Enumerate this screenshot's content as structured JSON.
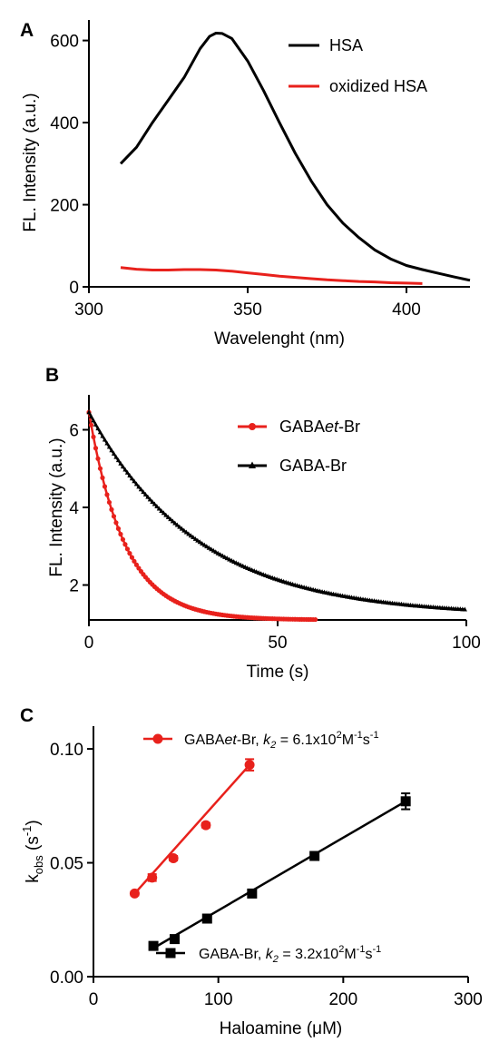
{
  "chart_data": [
    {
      "panel": "A",
      "type": "line",
      "xlabel": "Wavelenght (nm)",
      "ylabel": "FL. Intensity  (a.u.)",
      "xlim": [
        300,
        420
      ],
      "ylim": [
        0,
        650
      ],
      "xticks": [
        300,
        350,
        400
      ],
      "yticks": [
        0,
        200,
        400,
        600
      ],
      "legend_position": "top-right",
      "series": [
        {
          "name": "HSA",
          "color": "#000000",
          "x": [
            310,
            315,
            320,
            325,
            330,
            335,
            338,
            340,
            342,
            345,
            350,
            355,
            360,
            365,
            370,
            375,
            380,
            385,
            390,
            395,
            400,
            405,
            410,
            415,
            420
          ],
          "y": [
            300,
            340,
            400,
            455,
            510,
            580,
            610,
            618,
            617,
            605,
            550,
            478,
            400,
            325,
            258,
            200,
            155,
            120,
            90,
            68,
            52,
            42,
            33,
            24,
            16
          ]
        },
        {
          "name": "oxidized HSA",
          "color": "#e8211c",
          "x": [
            310,
            315,
            320,
            325,
            330,
            335,
            340,
            345,
            350,
            355,
            360,
            365,
            370,
            375,
            380,
            385,
            390,
            395,
            400,
            405
          ],
          "y": [
            47,
            43,
            41,
            41,
            42,
            42,
            41,
            38,
            34,
            30,
            26,
            23,
            20,
            17,
            15,
            13,
            12,
            10,
            9,
            8
          ]
        }
      ]
    },
    {
      "panel": "B",
      "type": "line",
      "xlabel": "Time (s)",
      "ylabel": "FL. Intensity  (a.u.)",
      "xlim": [
        0,
        100
      ],
      "ylim": [
        1.1,
        6.9
      ],
      "xticks": [
        0,
        50,
        100
      ],
      "yticks": [
        2,
        4,
        6
      ],
      "legend_position": "top-right",
      "series": [
        {
          "name": "GABAet-Br",
          "name_parts": [
            "GABA",
            "et",
            "-Br"
          ],
          "color": "#e8211c",
          "marker": "circle",
          "model": "exponential",
          "y0": 6.45,
          "yinf": 1.1,
          "tau": 9.5,
          "x_range": [
            0,
            60
          ]
        },
        {
          "name": "GABA-Br",
          "color": "#000000",
          "marker": "triangle",
          "model": "exponential",
          "y0": 6.45,
          "yinf": 1.2,
          "tau": 29,
          "x_range": [
            0,
            100
          ]
        }
      ]
    },
    {
      "panel": "C",
      "type": "scatter",
      "xlabel": "Haloamine (μM)",
      "ylabel": "kobs (s-1)",
      "xlim": [
        0,
        300
      ],
      "ylim": [
        0,
        0.11
      ],
      "xticks": [
        0,
        100,
        200,
        300
      ],
      "yticks": [
        0.0,
        0.05,
        0.1
      ],
      "ytick_labels": [
        "0.00",
        "0.05",
        "0.10"
      ],
      "series": [
        {
          "name": "GABAet-Br",
          "legend_main": "GABA",
          "legend_italic": "et",
          "legend_rest": "-Br, ",
          "legend_k": "k",
          "legend_k_sub": "2",
          "legend_eq": " = 6.1x10",
          "legend_sup1": "2",
          "legend_unit": "M",
          "legend_sup2": "-1",
          "legend_unit2": "s",
          "legend_sup3": "-1",
          "color": "#e8211c",
          "marker": "circle",
          "x": [
            33,
            47,
            64,
            90,
            125
          ],
          "y": [
            0.0365,
            0.0435,
            0.052,
            0.0665,
            0.093
          ],
          "err": [
            0.0008,
            0.0015,
            0.001,
            0.001,
            0.0025
          ],
          "fit": [
            [
              33,
              0.0365
            ],
            [
              125,
              0.093
            ]
          ]
        },
        {
          "name": "GABA-Br",
          "legend_main": "GABA-Br, ",
          "legend_k": "k",
          "legend_k_sub": "2",
          "legend_eq": " = 3.2x10",
          "legend_sup1": "2",
          "legend_unit": "M",
          "legend_sup2": "-1",
          "legend_unit2": "s",
          "legend_sup3": "-1",
          "color": "#000000",
          "marker": "square",
          "x": [
            48,
            65,
            91,
            127,
            177,
            250
          ],
          "y": [
            0.0135,
            0.0165,
            0.0255,
            0.0365,
            0.053,
            0.077
          ],
          "err": [
            0.0008,
            0.0008,
            0.0008,
            0.0008,
            0.0008,
            0.0035
          ],
          "fit": [
            [
              48,
              0.0125
            ],
            [
              250,
              0.077
            ]
          ]
        }
      ]
    }
  ]
}
